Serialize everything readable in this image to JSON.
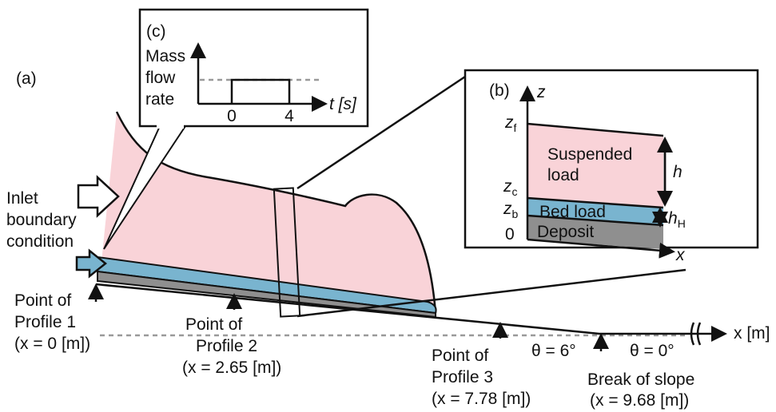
{
  "panel_a": {
    "label": "(a)",
    "inlet": [
      "Inlet",
      "boundary",
      "condition"
    ],
    "profile_1": [
      "Point of",
      "Profile 1",
      "(x = 0 [m])"
    ],
    "profile_2": [
      "Point of",
      "Profile 2",
      "(x = 2.65 [m])"
    ],
    "profile_3": [
      "Point of",
      "Profile 3",
      "(x = 7.78 [m])"
    ],
    "break": [
      "Break of slope",
      "(x = 9.68 [m])"
    ],
    "theta_slope": "θ = 6°",
    "theta_flat": "θ = 0°",
    "x_axis": "x [m]"
  },
  "panel_b": {
    "label": "(b)",
    "z_axis": "z",
    "x_axis": "x",
    "z_f": {
      "symbol": "z",
      "sub": "f"
    },
    "z_c": {
      "symbol": "z",
      "sub": "c"
    },
    "z_b": {
      "symbol": "z",
      "sub": "b"
    },
    "origin": "0",
    "suspended": [
      "Suspended",
      "load"
    ],
    "bed": "Bed load",
    "deposit": "Deposit",
    "h": "h",
    "h_H": {
      "symbol": "h",
      "sub": "H"
    }
  },
  "panel_c": {
    "label": "(c)",
    "y_label": [
      "Mass",
      "flow",
      "rate"
    ],
    "t0": "0",
    "t1": "4",
    "x_label": "t [s]"
  }
}
